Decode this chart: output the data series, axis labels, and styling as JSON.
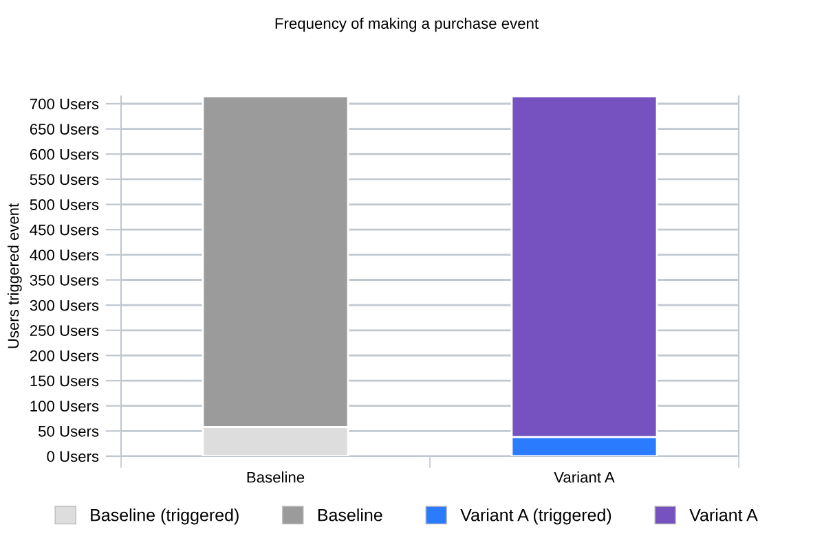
{
  "chart_data": {
    "type": "bar",
    "title": "Frequency of making a purchase event",
    "ylabel": "Users triggered event",
    "categories": [
      "Baseline",
      "Variant A"
    ],
    "stacked": true,
    "series": [
      {
        "name": "Baseline (triggered)",
        "color": "#dddddd",
        "values": [
          58,
          null
        ]
      },
      {
        "name": "Baseline",
        "color": "#9b9b9b",
        "values": [
          657,
          null
        ]
      },
      {
        "name": "Variant A (triggered)",
        "color": "#2b7bff",
        "values": [
          null,
          38
        ]
      },
      {
        "name": "Variant A",
        "color": "#7652c0",
        "values": [
          null,
          677
        ]
      }
    ],
    "ylim": [
      0,
      715
    ],
    "yticks": [
      {
        "value": 0,
        "label": "0 Users"
      },
      {
        "value": 50,
        "label": "50 Users"
      },
      {
        "value": 100,
        "label": "100 Users"
      },
      {
        "value": 150,
        "label": "150 Users"
      },
      {
        "value": 200,
        "label": "200 Users"
      },
      {
        "value": 250,
        "label": "250 Users"
      },
      {
        "value": 300,
        "label": "300 Users"
      },
      {
        "value": 350,
        "label": "350 Users"
      },
      {
        "value": 400,
        "label": "400 Users"
      },
      {
        "value": 450,
        "label": "450 Users"
      },
      {
        "value": 500,
        "label": "500 Users"
      },
      {
        "value": 550,
        "label": "550 Users"
      },
      {
        "value": 600,
        "label": "600 Users"
      },
      {
        "value": 650,
        "label": "650 Users"
      },
      {
        "value": 700,
        "label": "700 Users"
      }
    ],
    "grid": "y",
    "legend": "bottom"
  }
}
